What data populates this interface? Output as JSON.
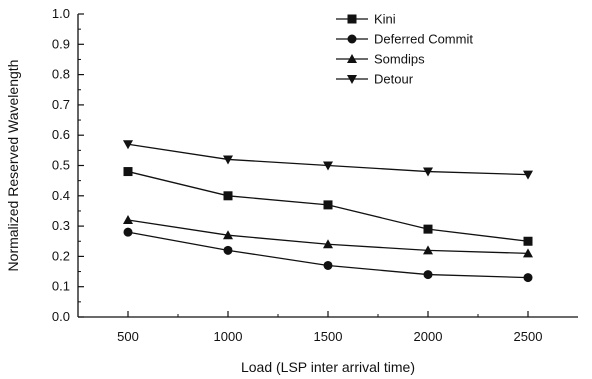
{
  "chart_data": {
    "type": "line",
    "title": "",
    "xlabel": "Load (LSP inter arrival time)",
    "ylabel": "Normalized Reserved Wavelength",
    "x": [
      500,
      1000,
      1500,
      2000,
      2500
    ],
    "x_tick_labels": [
      "500",
      "1000",
      "1500",
      "2000",
      "2500"
    ],
    "xlim": [
      250,
      2750
    ],
    "ylim": [
      0,
      1.0
    ],
    "y_ticks": [
      "0.0",
      "0.1",
      "0.2",
      "0.3",
      "0.4",
      "0.5",
      "0.6",
      "0.7",
      "0.8",
      "0.9",
      "1.0"
    ],
    "grid": false,
    "legend_position": "top-right",
    "series": [
      {
        "name": "Kini",
        "marker": "square",
        "values": [
          0.48,
          0.4,
          0.37,
          0.29,
          0.25
        ]
      },
      {
        "name": "Deferred Commit",
        "marker": "circle",
        "values": [
          0.28,
          0.22,
          0.17,
          0.14,
          0.13
        ]
      },
      {
        "name": "Somdips",
        "marker": "triangle-up",
        "values": [
          0.32,
          0.27,
          0.24,
          0.22,
          0.21
        ]
      },
      {
        "name": "Detour",
        "marker": "triangle-down",
        "values": [
          0.57,
          0.52,
          0.5,
          0.48,
          0.47
        ]
      }
    ],
    "colors": {
      "line": "#111111",
      "marker": "#111111"
    }
  }
}
